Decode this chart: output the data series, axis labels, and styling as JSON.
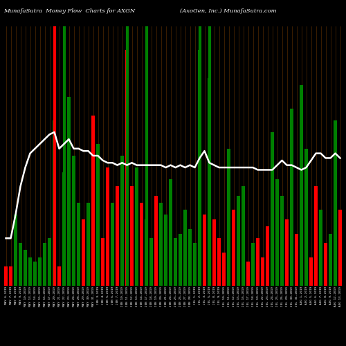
{
  "title_left": "MunafaSutra  Money Flow  Charts for AXGN",
  "title_right": "(AxoGen, Inc.) MunafaSutra.com",
  "background_color": "#000000",
  "bar_colors": [
    "red",
    "red",
    "green",
    "green",
    "green",
    "green",
    "green",
    "green",
    "green",
    "green",
    "green",
    "red",
    "green",
    "green",
    "green",
    "green",
    "red",
    "green",
    "red",
    "green",
    "red",
    "red",
    "green",
    "red",
    "green",
    "red",
    "red",
    "green",
    "red",
    "green",
    "green",
    "red",
    "green",
    "green",
    "green",
    "green",
    "green",
    "green",
    "green",
    "green",
    "green",
    "red",
    "green",
    "red",
    "red",
    "red",
    "green",
    "red",
    "green",
    "green",
    "red",
    "green",
    "red",
    "red",
    "red",
    "green",
    "green",
    "green",
    "red",
    "green",
    "red",
    "green",
    "green",
    "red",
    "red",
    "green",
    "red",
    "green",
    "green",
    "red"
  ],
  "bar_heights": [
    8,
    8,
    30,
    18,
    15,
    12,
    10,
    12,
    18,
    20,
    70,
    8,
    48,
    80,
    55,
    35,
    28,
    35,
    72,
    60,
    20,
    50,
    35,
    42,
    55,
    100,
    42,
    50,
    35,
    28,
    20,
    38,
    35,
    30,
    45,
    20,
    22,
    32,
    24,
    18,
    100,
    30,
    88,
    28,
    20,
    14,
    58,
    32,
    38,
    42,
    10,
    18,
    20,
    12,
    25,
    65,
    45,
    38,
    28,
    75,
    22,
    85,
    58,
    12,
    42,
    32,
    18,
    22,
    70,
    32
  ],
  "vertical_line_positions": [
    10,
    12,
    25,
    29,
    40,
    42
  ],
  "vertical_line_colors": [
    "red",
    "green",
    "green",
    "green",
    "green",
    "green"
  ],
  "vertical_line_widths": [
    3,
    3,
    3,
    3,
    3,
    3
  ],
  "line_values": [
    20,
    20,
    30,
    42,
    50,
    56,
    58,
    60,
    62,
    64,
    65,
    58,
    60,
    62,
    58,
    58,
    57,
    57,
    55,
    55,
    53,
    52,
    52,
    51,
    52,
    51,
    52,
    51,
    51,
    51,
    51,
    51,
    51,
    50,
    51,
    50,
    51,
    50,
    51,
    50,
    54,
    57,
    52,
    51,
    50,
    50,
    50,
    50,
    50,
    50,
    50,
    50,
    49,
    49,
    49,
    49,
    51,
    53,
    51,
    51,
    50,
    49,
    50,
    53,
    56,
    56,
    54,
    54,
    56,
    54
  ],
  "x_labels": [
    "MAY 6,2019",
    "MAY 7,2019",
    "MAY 8,2019",
    "MAY 9,2019",
    "MAY 10,2019",
    "MAY 13,2019",
    "MAY 14,2019",
    "MAY 15,2019",
    "MAY 16,2019",
    "MAY 17,2019",
    "MAY 20,2019",
    "MAY 21,2019",
    "MAY 22,2019",
    "MAY 23,2019",
    "MAY 24,2019",
    "MAY 28,2019",
    "MAY 29,2019",
    "MAY 30,2019",
    "MAY 31,2019",
    "JUN 3,2019",
    "JUN 4,2019",
    "JUN 5,2019",
    "JUN 6,2019",
    "JUN 7,2019",
    "JUN 10,2019",
    "JUN 11,2019",
    "JUN 12,2019",
    "JUN 13,2019",
    "JUN 14,2019",
    "JUN 17,2019",
    "JUN 18,2019",
    "JUN 19,2019",
    "JUN 20,2019",
    "JUN 21,2019",
    "JUN 24,2019",
    "JUN 25,2019",
    "JUN 26,2019",
    "JUN 27,2019",
    "JUN 28,2019",
    "JUL 1,2019",
    "JUL 2,2019",
    "JUL 3,2019",
    "JUL 5,2019",
    "JUL 8,2019",
    "JUL 9,2019",
    "JUL 10,2019",
    "JUL 11,2019",
    "JUL 12,2019",
    "JUL 15,2019",
    "JUL 16,2019",
    "JUL 17,2019",
    "JUL 18,2019",
    "JUL 19,2019",
    "JUL 22,2019",
    "JUL 23,2019",
    "JUL 24,2019",
    "JUL 25,2019",
    "JUL 26,2019",
    "JUL 29,2019",
    "JUL 30,2019",
    "JUL 31,2019",
    "AUG 1,2019",
    "AUG 2,2019",
    "AUG 5,2019",
    "AUG 6,2019",
    "AUG 7,2019",
    "AUG 8,2019",
    "AUG 9,2019",
    "AUG 12,2019",
    "AUG 13,2019"
  ],
  "dark_orange_grid_color": "#5a2d00",
  "line_color": "#ffffff",
  "line_width": 1.8,
  "ylim_max": 110,
  "line_scale": 1.0
}
